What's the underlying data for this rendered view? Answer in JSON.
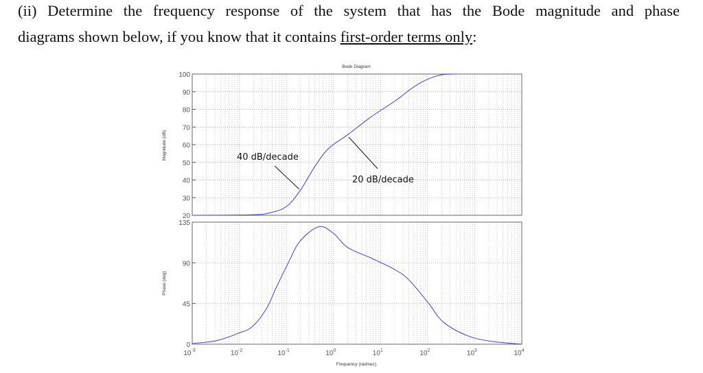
{
  "question": {
    "line1": "(ii) Determine the frequency response of the system that has the Bode magnitude and phase",
    "line2_prefix": "diagrams shown below, if you know that it contains ",
    "line2_underlined": "first-order terms only",
    "line2_suffix": ":"
  },
  "chart_data": [
    {
      "type": "line",
      "title": "Bode Diagram",
      "ylabel": "Magnitude (dB)",
      "xscale": "log",
      "xlim": [
        0.001,
        10000
      ],
      "ylim": [
        20,
        100
      ],
      "yticks": [
        "100",
        "90",
        "80",
        "70",
        "60",
        "50",
        "40",
        "30",
        "20"
      ],
      "grid": true,
      "color": "#3a3af0",
      "x": [
        0.001,
        0.019,
        0.043,
        0.098,
        0.195,
        0.4,
        0.79,
        2.0,
        6.5,
        21,
        52,
        107,
        214,
        427
      ],
      "y": [
        20,
        20.3,
        21.3,
        24.8,
        33.9,
        47.5,
        57.9,
        65.6,
        76,
        85,
        92.9,
        97.4,
        99.7,
        100
      ],
      "annotations": [
        {
          "text": "40 dB/decade",
          "at_x": 0.13,
          "at_y": 34
        },
        {
          "text": "20 dB/decade",
          "at_x": 1.5,
          "at_y": 64
        }
      ]
    },
    {
      "type": "line",
      "xlabel": "Frequency  (rad/sec)",
      "ylabel": "Phase (deg)",
      "xscale": "log",
      "xlim": [
        0.001,
        10000
      ],
      "ylim": [
        0,
        135
      ],
      "yticks": [
        "135",
        "90",
        "45",
        "0"
      ],
      "xticks": [
        "10^-3",
        "10^-2",
        "10^-1",
        "10^0",
        "10^1",
        "10^2",
        "10^3",
        "10^4"
      ],
      "grid": true,
      "color": "#3a3af0",
      "x": [
        0.001,
        0.0033,
        0.01,
        0.019,
        0.038,
        0.06,
        0.11,
        0.195,
        0.49,
        1.0,
        2.0,
        6.5,
        21,
        42,
        107,
        214,
        692,
        2188,
        10000
      ],
      "y": [
        0.8,
        4,
        12.5,
        19.6,
        39.6,
        62,
        90,
        114,
        130,
        122.6,
        107,
        95,
        82,
        70,
        44.7,
        24.6,
        9.5,
        3.3,
        0
      ]
    }
  ]
}
